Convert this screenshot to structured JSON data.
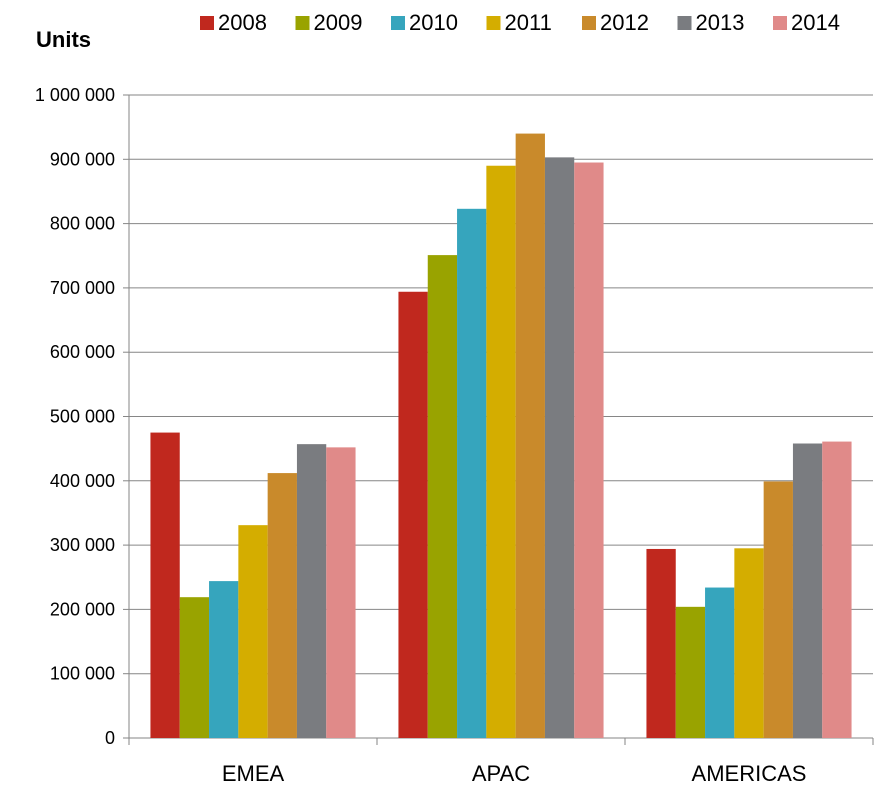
{
  "chart_data": {
    "type": "bar",
    "ylabel": "Units",
    "categories": [
      "EMEA",
      "APAC",
      "AMERICAS"
    ],
    "ylim": [
      0,
      1000000
    ],
    "y_ticks": [
      {
        "value": 0,
        "label": "0"
      },
      {
        "value": 100000,
        "label": "100 000"
      },
      {
        "value": 200000,
        "label": "200 000"
      },
      {
        "value": 300000,
        "label": "300 000"
      },
      {
        "value": 400000,
        "label": "400 000"
      },
      {
        "value": 500000,
        "label": "500 000"
      },
      {
        "value": 600000,
        "label": "600 000"
      },
      {
        "value": 700000,
        "label": "700 000"
      },
      {
        "value": 800000,
        "label": "800 000"
      },
      {
        "value": 900000,
        "label": "900 000"
      },
      {
        "value": 1000000,
        "label": "1 000 000"
      }
    ],
    "grid": true,
    "legend_position": "top",
    "series": [
      {
        "name": "2008",
        "color": "#c0281e",
        "values": [
          475000,
          694000,
          294000
        ]
      },
      {
        "name": "2009",
        "color": "#99a300",
        "values": [
          219000,
          751000,
          204000
        ]
      },
      {
        "name": "2010",
        "color": "#36a5bd",
        "values": [
          244000,
          823000,
          234000
        ]
      },
      {
        "name": "2011",
        "color": "#d4ad00",
        "values": [
          331000,
          890000,
          295000
        ]
      },
      {
        "name": "2012",
        "color": "#c98a2b",
        "values": [
          412000,
          940000,
          399000
        ]
      },
      {
        "name": "2013",
        "color": "#7a7c80",
        "values": [
          457000,
          903000,
          458000
        ]
      },
      {
        "name": "2014",
        "color": "#e08a89",
        "values": [
          452000,
          895000,
          461000
        ]
      }
    ]
  }
}
